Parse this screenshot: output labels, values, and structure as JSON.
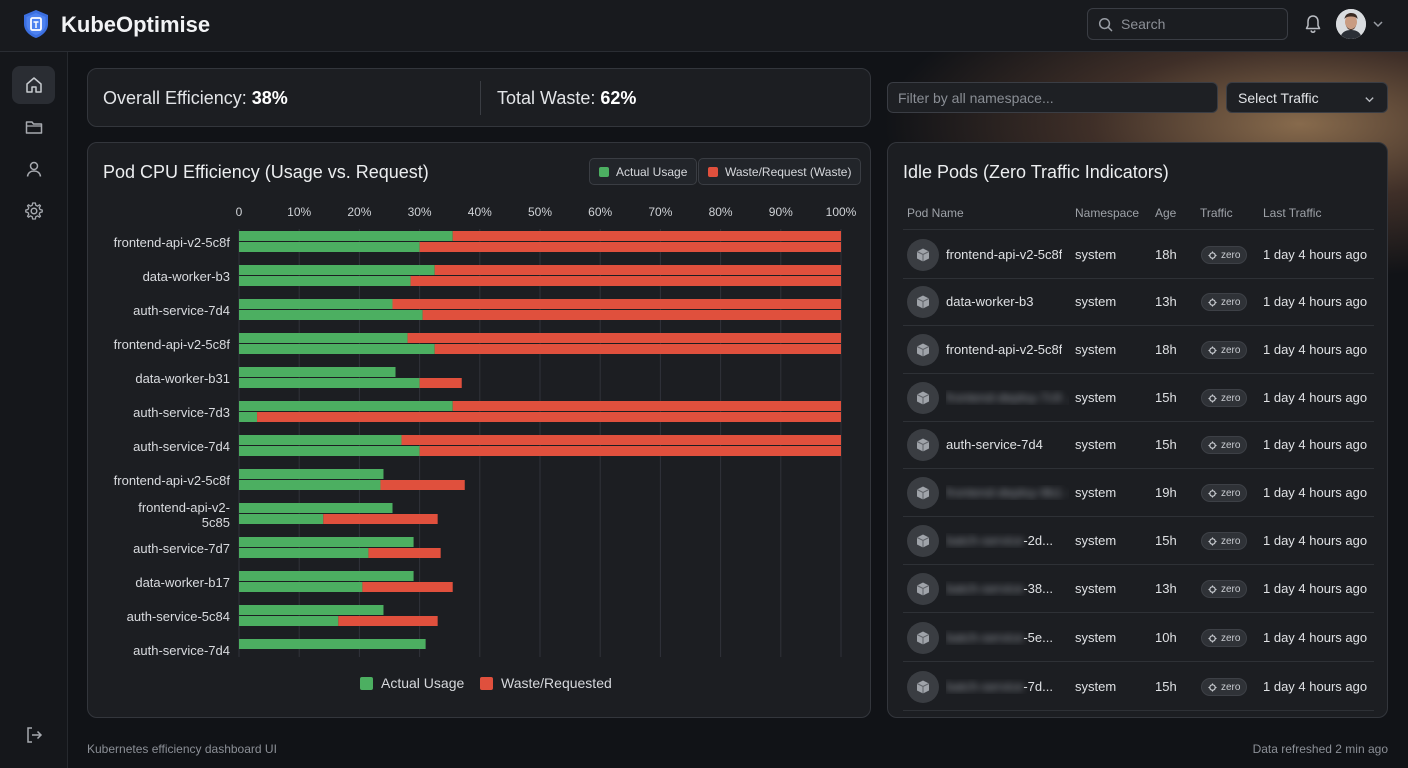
{
  "app": {
    "title": "KubeOptimise",
    "logo_icon": "shield-logo-icon"
  },
  "header": {
    "search_placeholder": "Search",
    "notification_icon": "bell-icon",
    "avatar_icon": "user-avatar"
  },
  "sidebar": {
    "items": [
      {
        "name": "home",
        "icon": "home-icon",
        "active": true
      },
      {
        "name": "folders",
        "icon": "folder-icon",
        "active": false
      },
      {
        "name": "users",
        "icon": "user-icon",
        "active": false
      },
      {
        "name": "settings",
        "icon": "gear-icon",
        "active": false
      }
    ],
    "logout_icon": "logout-icon"
  },
  "summary": {
    "efficiency_label": "Overall Efficiency:",
    "efficiency_value": "38%",
    "waste_label": "Total Waste:",
    "waste_value": "62%"
  },
  "filters": {
    "namespace_placeholder": "Filter by all namespace...",
    "traffic_select_value": "Select Traffic"
  },
  "chart": {
    "title": "Pod CPU Efficiency (Usage vs. Request)",
    "legend_top": [
      "Actual Usage",
      "Waste/Request (Waste)"
    ],
    "legend_bottom": [
      "Actual Usage",
      "Waste/Requested"
    ],
    "colors": {
      "usage": "#4caf61",
      "waste": "#e0503d"
    }
  },
  "chart_data": {
    "type": "bar",
    "orientation": "horizontal",
    "stacked": true,
    "x_ticks": [
      "0",
      "10%",
      "20%",
      "30%",
      "40%",
      "50%",
      "60%",
      "70%",
      "80%",
      "90%",
      "100%"
    ],
    "xlim": [
      0,
      100
    ],
    "categories": [
      "frontend-api-v2-5c8f",
      "data-worker-b3",
      "auth-service-7d4",
      "frontend-api-v2-5c8f",
      "data-worker-b31",
      "auth-service-7d3",
      "auth-service-7d4",
      "frontend-api-v2-5c8f",
      "frontend-api-v2-\n5c85",
      "auth-service-7d7",
      "data-worker-b17",
      "auth-service-5c84",
      "auth-service-7d4"
    ],
    "series": [
      {
        "name": "Actual Usage",
        "values": [
          [
            35.5,
            30
          ],
          [
            32.5,
            28.5
          ],
          [
            25.5,
            30.5
          ],
          [
            28,
            32.5
          ],
          [
            26,
            30
          ],
          [
            35.5,
            3
          ],
          [
            27,
            30
          ],
          [
            24,
            23.5
          ],
          [
            25.5,
            14
          ],
          [
            29,
            21.5
          ],
          [
            29,
            20.5
          ],
          [
            24,
            16.5
          ],
          [
            31,
            0
          ]
        ]
      },
      {
        "name": "Waste/Requested",
        "values": [
          [
            64.5,
            70
          ],
          [
            67.5,
            71.5
          ],
          [
            74.5,
            69.5
          ],
          [
            72,
            67.5
          ],
          [
            0,
            7
          ],
          [
            64.5,
            97
          ],
          [
            73,
            70
          ],
          [
            0,
            14
          ],
          [
            0,
            19
          ],
          [
            0,
            12
          ],
          [
            0,
            15
          ],
          [
            0,
            16.5
          ],
          [
            0,
            0
          ]
        ]
      }
    ]
  },
  "idle_pods": {
    "title": "Idle Pods (Zero Traffic Indicators)",
    "columns": [
      "Pod Name",
      "Namespace",
      "Age",
      "Traffic",
      "Last Traffic"
    ],
    "rows": [
      {
        "name": "frontend-api-v2-5c8f",
        "blurred": "",
        "namespace": "system",
        "age": "18h",
        "traffic": "zero",
        "last": "1 day 4 hours ago"
      },
      {
        "name": "data-worker-b3",
        "blurred": "",
        "namespace": "system",
        "age": "13h",
        "traffic": "zero",
        "last": "1 day 4 hours ago"
      },
      {
        "name": "frontend-api-v2-5c8f",
        "blurred": "",
        "namespace": "system",
        "age": "18h",
        "traffic": "zero",
        "last": "1 day 4 hours ago"
      },
      {
        "name": "",
        "blurred": "frontend-deploy-7c9 ...",
        "namespace": "system",
        "age": "15h",
        "traffic": "zero",
        "last": "1 day 4 hours ago"
      },
      {
        "name": "auth-service-7d4",
        "blurred": "",
        "namespace": "system",
        "age": "15h",
        "traffic": "zero",
        "last": "1 day 4 hours ago"
      },
      {
        "name": "",
        "blurred": "frontend-deploy-9b1 -",
        "namespace": "system",
        "age": "19h",
        "traffic": "zero",
        "last": "1 day 4 hours ago"
      },
      {
        "name": "-2d...",
        "blurred": "batch-service",
        "namespace": "system",
        "age": "15h",
        "traffic": "zero",
        "last": "1 day 4 hours ago"
      },
      {
        "name": "-38...",
        "blurred": "batch-service",
        "namespace": "system",
        "age": "13h",
        "traffic": "zero",
        "last": "1 day 4 hours ago"
      },
      {
        "name": "-5e...",
        "blurred": "batch-service",
        "namespace": "system",
        "age": "10h",
        "traffic": "zero",
        "last": "1 day 4 hours ago"
      },
      {
        "name": "-7d...",
        "blurred": "batch-service",
        "namespace": "system",
        "age": "15h",
        "traffic": "zero",
        "last": "1 day 4 hours ago"
      }
    ]
  },
  "footer": {
    "left": "Kubernetes efficiency dashboard UI",
    "right": "Data refreshed 2 min ago"
  }
}
